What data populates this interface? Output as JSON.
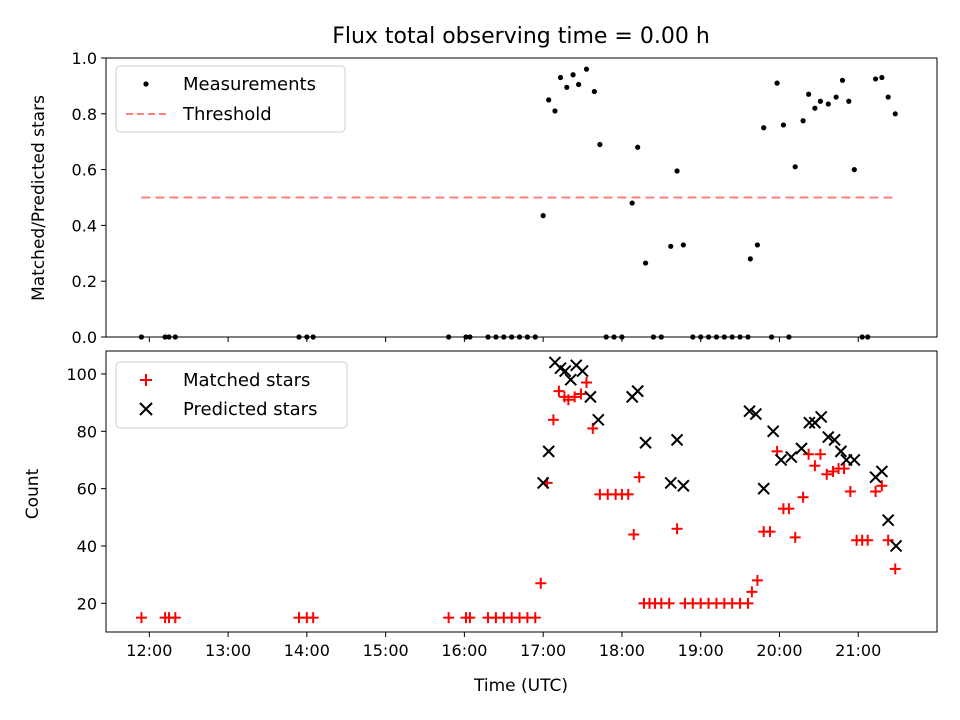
{
  "chart_data": [
    {
      "type": "scatter",
      "title": "Flux total observing time = 0.00 h",
      "xlabel": "",
      "ylabel": "Matched/Predicted stars",
      "xlim": [
        11.45,
        22.0
      ],
      "ylim": [
        0.0,
        1.0
      ],
      "yticks": [
        "0.0",
        "0.2",
        "0.4",
        "0.6",
        "0.8",
        "1.0"
      ],
      "legend": {
        "position": "top-left",
        "entries": [
          "Measurements",
          "Threshold"
        ]
      },
      "threshold": {
        "name": "Threshold",
        "y": 0.5,
        "x": [
          11.9,
          21.5
        ],
        "color": "#ff7f7f"
      },
      "series": [
        {
          "name": "Measurements",
          "color": "#000000",
          "points": [
            [
              11.9,
              0
            ],
            [
              12.2,
              0
            ],
            [
              12.25,
              0
            ],
            [
              12.33,
              0
            ],
            [
              13.9,
              0
            ],
            [
              14.0,
              0
            ],
            [
              14.08,
              0
            ],
            [
              15.8,
              0
            ],
            [
              16.02,
              0
            ],
            [
              16.07,
              0
            ],
            [
              16.3,
              0
            ],
            [
              16.4,
              0
            ],
            [
              16.5,
              0
            ],
            [
              16.6,
              0
            ],
            [
              16.7,
              0
            ],
            [
              16.8,
              0
            ],
            [
              16.9,
              0
            ],
            [
              17.0,
              0.435
            ],
            [
              17.07,
              0.85
            ],
            [
              17.15,
              0.81
            ],
            [
              17.22,
              0.93
            ],
            [
              17.3,
              0.895
            ],
            [
              17.38,
              0.94
            ],
            [
              17.45,
              0.905
            ],
            [
              17.55,
              0.96
            ],
            [
              17.65,
              0.88
            ],
            [
              17.72,
              0.69
            ],
            [
              17.8,
              0
            ],
            [
              17.9,
              0
            ],
            [
              18.0,
              0
            ],
            [
              18.13,
              0.48
            ],
            [
              18.2,
              0.68
            ],
            [
              18.3,
              0.265
            ],
            [
              18.4,
              0
            ],
            [
              18.5,
              0
            ],
            [
              18.62,
              0.325
            ],
            [
              18.7,
              0.595
            ],
            [
              18.78,
              0.33
            ],
            [
              18.9,
              0
            ],
            [
              19.0,
              0
            ],
            [
              19.1,
              0
            ],
            [
              19.2,
              0
            ],
            [
              19.3,
              0
            ],
            [
              19.4,
              0
            ],
            [
              19.5,
              0
            ],
            [
              19.6,
              0
            ],
            [
              19.63,
              0.28
            ],
            [
              19.72,
              0.33
            ],
            [
              19.8,
              0.75
            ],
            [
              19.9,
              0
            ],
            [
              19.97,
              0.91
            ],
            [
              20.05,
              0.76
            ],
            [
              20.12,
              0
            ],
            [
              20.2,
              0.61
            ],
            [
              20.3,
              0.775
            ],
            [
              20.37,
              0.87
            ],
            [
              20.45,
              0.82
            ],
            [
              20.52,
              0.845
            ],
            [
              20.62,
              0.835
            ],
            [
              20.72,
              0.86
            ],
            [
              20.8,
              0.92
            ],
            [
              20.88,
              0.845
            ],
            [
              20.95,
              0.6
            ],
            [
              21.05,
              0
            ],
            [
              21.12,
              0
            ],
            [
              21.22,
              0.925
            ],
            [
              21.3,
              0.93
            ],
            [
              21.38,
              0.86
            ],
            [
              21.47,
              0.8
            ]
          ]
        }
      ]
    },
    {
      "type": "scatter",
      "title": "",
      "xlabel": "Time (UTC)",
      "ylabel": "Count",
      "xlim": [
        11.45,
        22.0
      ],
      "ylim": [
        10,
        108
      ],
      "xticks": [
        "12:00",
        "13:00",
        "14:00",
        "15:00",
        "16:00",
        "17:00",
        "18:00",
        "19:00",
        "20:00",
        "21:00"
      ],
      "yticks": [
        "20",
        "40",
        "60",
        "80",
        "100"
      ],
      "legend": {
        "position": "top-left",
        "entries": [
          "Matched stars",
          "Predicted stars"
        ]
      },
      "series": [
        {
          "name": "Matched stars",
          "color": "#ff0000",
          "marker": "plus",
          "points": [
            [
              11.9,
              15
            ],
            [
              12.2,
              15
            ],
            [
              12.25,
              15
            ],
            [
              12.33,
              15
            ],
            [
              13.9,
              15
            ],
            [
              14.0,
              15
            ],
            [
              14.08,
              15
            ],
            [
              15.8,
              15
            ],
            [
              16.02,
              15
            ],
            [
              16.07,
              15
            ],
            [
              16.3,
              15
            ],
            [
              16.4,
              15
            ],
            [
              16.5,
              15
            ],
            [
              16.6,
              15
            ],
            [
              16.7,
              15
            ],
            [
              16.8,
              15
            ],
            [
              16.9,
              15
            ],
            [
              16.97,
              27
            ],
            [
              17.05,
              62
            ],
            [
              17.13,
              84
            ],
            [
              17.2,
              94
            ],
            [
              17.27,
              92
            ],
            [
              17.32,
              91
            ],
            [
              17.4,
              92
            ],
            [
              17.48,
              93
            ],
            [
              17.55,
              97
            ],
            [
              17.63,
              81
            ],
            [
              17.72,
              58
            ],
            [
              17.82,
              58
            ],
            [
              17.92,
              58
            ],
            [
              18.0,
              58
            ],
            [
              18.08,
              58
            ],
            [
              18.15,
              44
            ],
            [
              18.22,
              64
            ],
            [
              18.28,
              20
            ],
            [
              18.35,
              20
            ],
            [
              18.42,
              20
            ],
            [
              18.5,
              20
            ],
            [
              18.6,
              20
            ],
            [
              18.7,
              46
            ],
            [
              18.8,
              20
            ],
            [
              18.9,
              20
            ],
            [
              19.0,
              20
            ],
            [
              19.1,
              20
            ],
            [
              19.2,
              20
            ],
            [
              19.3,
              20
            ],
            [
              19.4,
              20
            ],
            [
              19.5,
              20
            ],
            [
              19.6,
              20
            ],
            [
              19.65,
              24
            ],
            [
              19.72,
              28
            ],
            [
              19.8,
              45
            ],
            [
              19.88,
              45
            ],
            [
              19.97,
              73
            ],
            [
              20.05,
              53
            ],
            [
              20.12,
              53
            ],
            [
              20.2,
              43
            ],
            [
              20.3,
              57
            ],
            [
              20.37,
              72
            ],
            [
              20.45,
              68
            ],
            [
              20.52,
              72
            ],
            [
              20.6,
              65
            ],
            [
              20.68,
              66
            ],
            [
              20.75,
              67
            ],
            [
              20.82,
              67
            ],
            [
              20.9,
              59
            ],
            [
              20.98,
              42
            ],
            [
              21.05,
              42
            ],
            [
              21.12,
              42
            ],
            [
              21.22,
              59
            ],
            [
              21.3,
              61
            ],
            [
              21.38,
              42
            ],
            [
              21.47,
              32
            ]
          ]
        },
        {
          "name": "Predicted stars",
          "color": "#000000",
          "marker": "x",
          "points": [
            [
              17.0,
              62
            ],
            [
              17.07,
              73
            ],
            [
              17.15,
              104
            ],
            [
              17.22,
              102
            ],
            [
              17.28,
              101
            ],
            [
              17.35,
              98
            ],
            [
              17.42,
              103
            ],
            [
              17.5,
              101
            ],
            [
              17.6,
              92
            ],
            [
              17.7,
              84
            ],
            [
              18.13,
              92
            ],
            [
              18.2,
              94
            ],
            [
              18.3,
              76
            ],
            [
              18.62,
              62
            ],
            [
              18.7,
              77
            ],
            [
              18.78,
              61
            ],
            [
              19.62,
              87
            ],
            [
              19.7,
              86
            ],
            [
              19.8,
              60
            ],
            [
              19.92,
              80
            ],
            [
              20.02,
              70
            ],
            [
              20.15,
              71
            ],
            [
              20.28,
              74
            ],
            [
              20.38,
              83
            ],
            [
              20.45,
              83
            ],
            [
              20.53,
              85
            ],
            [
              20.62,
              78
            ],
            [
              20.7,
              77
            ],
            [
              20.78,
              73
            ],
            [
              20.85,
              70
            ],
            [
              20.95,
              70
            ],
            [
              21.22,
              64
            ],
            [
              21.3,
              66
            ],
            [
              21.38,
              49
            ],
            [
              21.48,
              40
            ]
          ]
        }
      ]
    }
  ]
}
